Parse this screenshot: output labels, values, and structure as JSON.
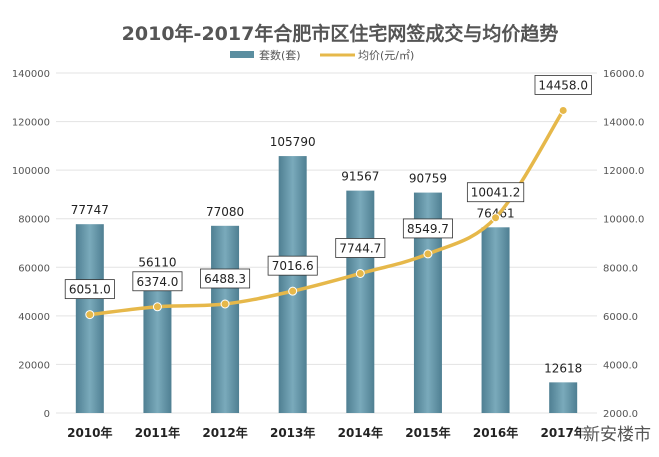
{
  "chart_data": {
    "type": "bar+line",
    "title": "2010年-2017年合肥市区住宅网签成交与均价趋势",
    "categories": [
      "2010年",
      "2011年",
      "2012年",
      "2013年",
      "2014年",
      "2015年",
      "2016年",
      "2017年"
    ],
    "series": [
      {
        "name": "套数(套)",
        "type": "bar",
        "axis": "left",
        "color": "#5b8ea0",
        "values": [
          77747,
          56110,
          77080,
          105790,
          91567,
          90759,
          76461,
          12618
        ]
      },
      {
        "name": "均价(元/㎡)",
        "type": "line",
        "axis": "right",
        "color": "#e6b84a",
        "values": [
          6051.0,
          6374.0,
          6488.3,
          7016.6,
          7744.7,
          8549.7,
          10041.2,
          14458.0
        ]
      }
    ],
    "left_axis": {
      "ylim": [
        0,
        140000
      ],
      "ticks": [
        "0",
        "20000",
        "40000",
        "60000",
        "80000",
        "100000",
        "120000",
        "140000"
      ]
    },
    "right_axis": {
      "ylim": [
        2000,
        16000
      ],
      "ticks": [
        "2000.0",
        "4000.0",
        "6000.0",
        "8000.0",
        "10000.0",
        "12000.0",
        "14000.0",
        "16000.0"
      ]
    },
    "grid": true,
    "legend": "top-center"
  },
  "watermark": "新安楼市"
}
